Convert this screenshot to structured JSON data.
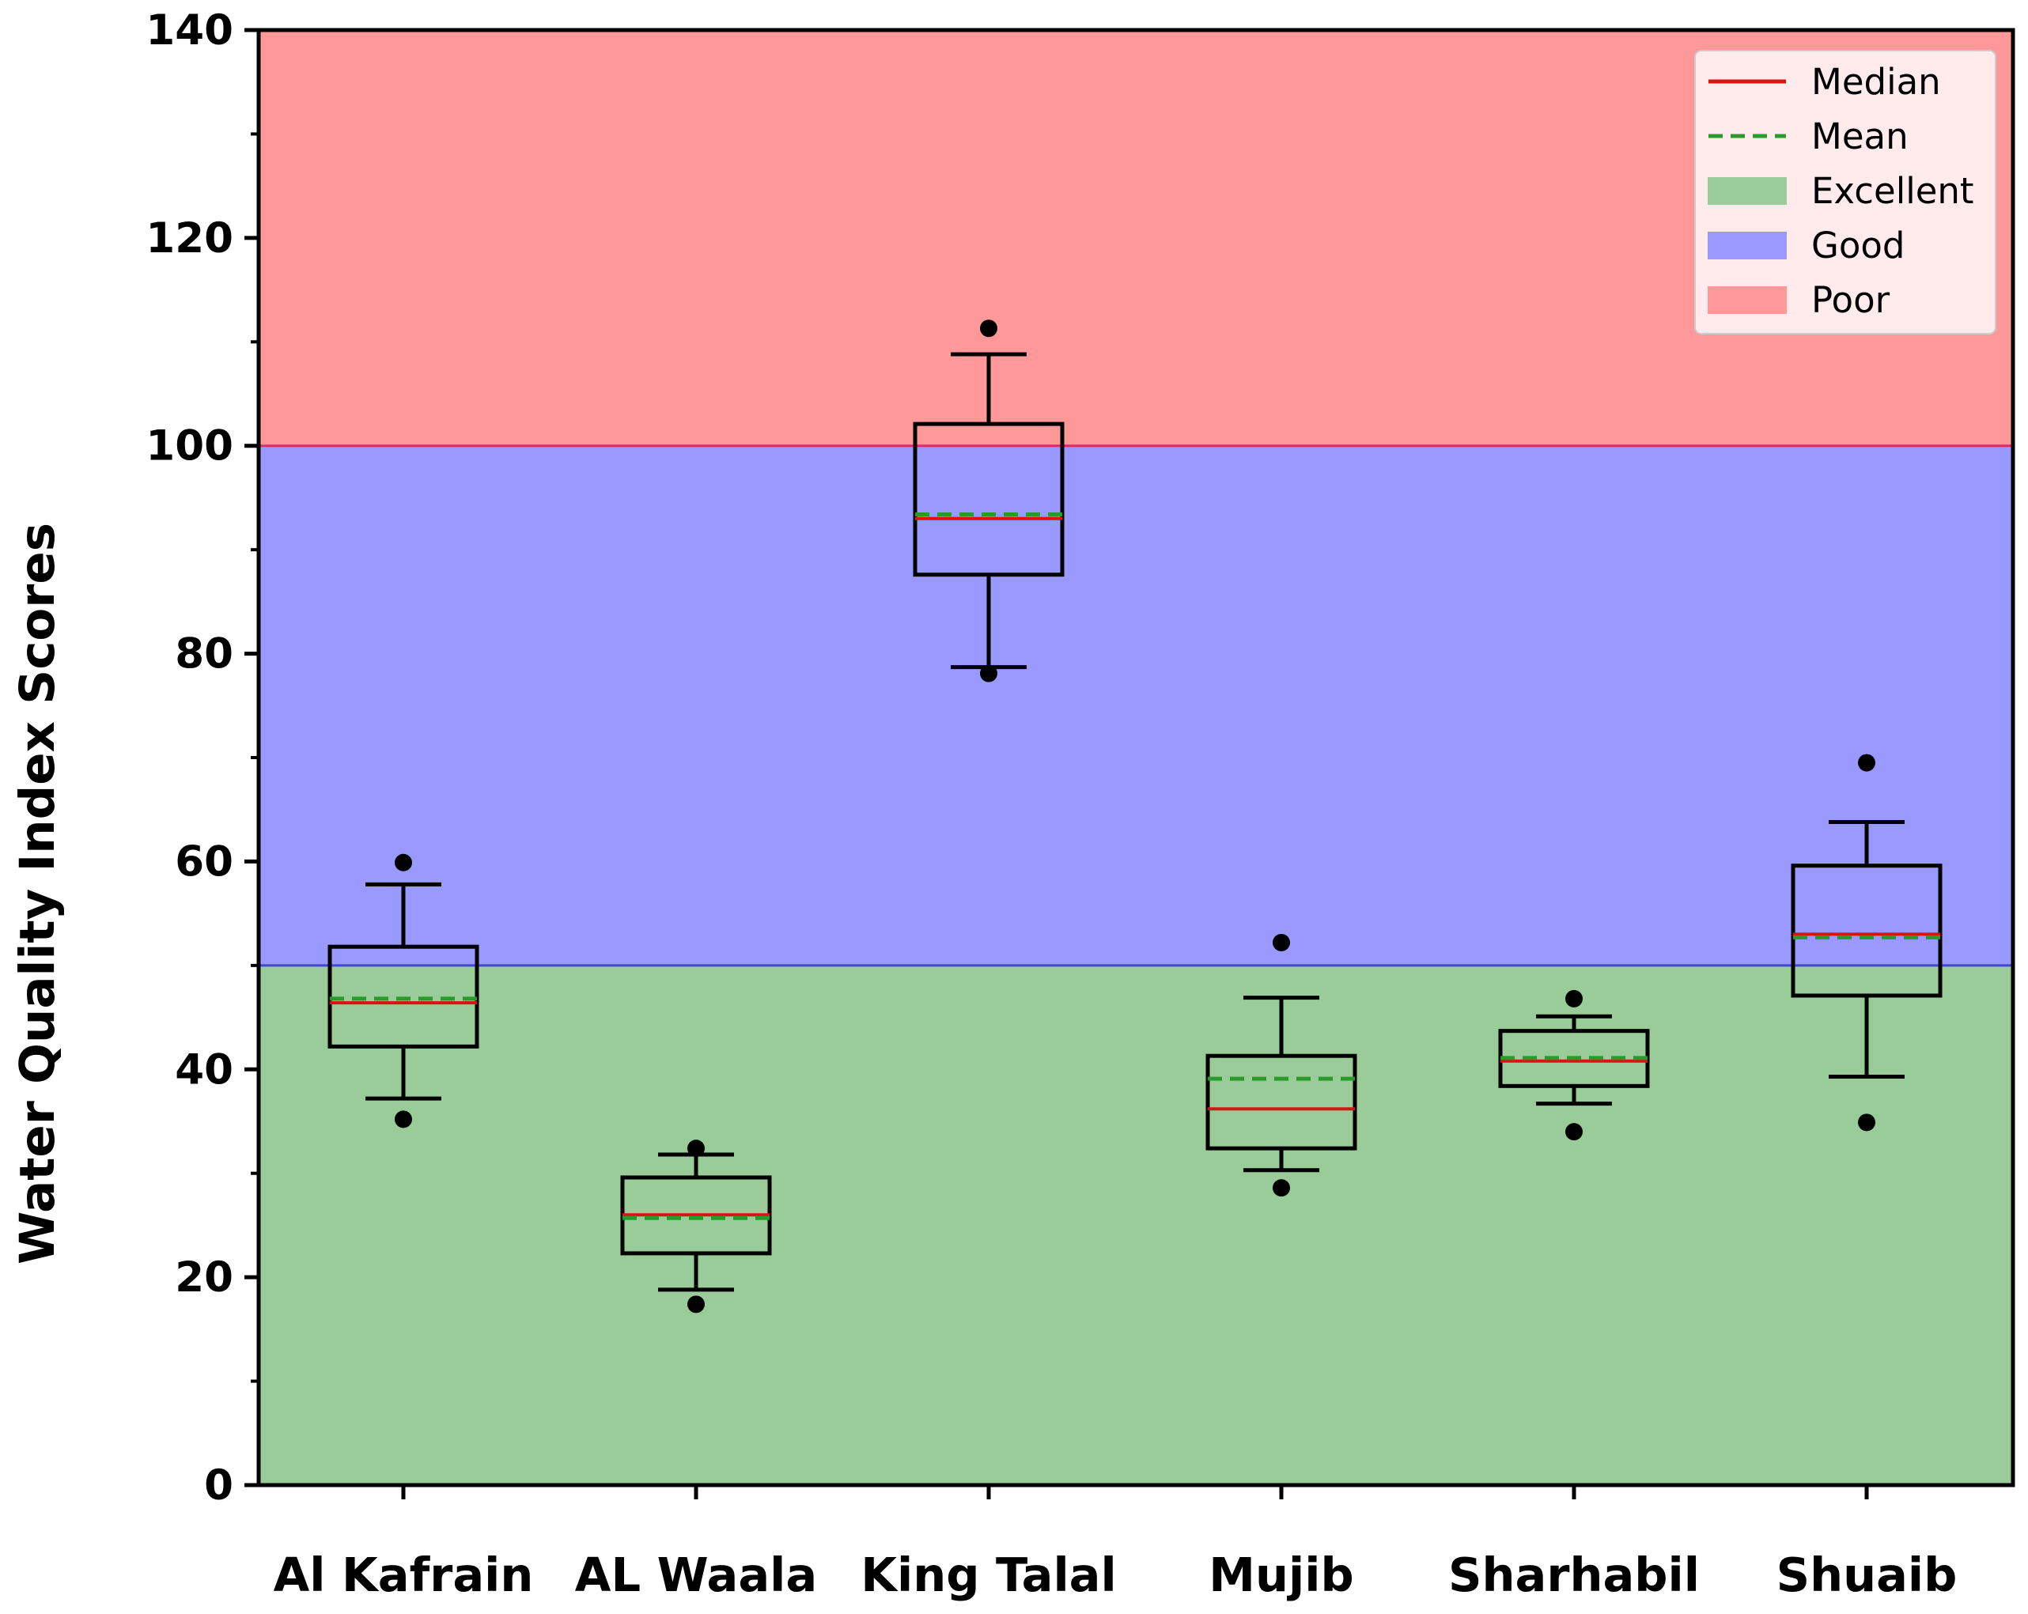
{
  "chart_data": {
    "type": "box",
    "title": "",
    "xlabel": "",
    "ylabel": "Water Quality Index Scores",
    "ylim": [
      0,
      140
    ],
    "yticks": [
      0,
      20,
      40,
      60,
      80,
      100,
      120,
      140
    ],
    "categories": [
      "Al Kafrain",
      "AL Waala",
      "King Talal",
      "Mujib",
      "Sharhabil",
      "Shuaib"
    ],
    "boxes": [
      {
        "whisker_low": 37.2,
        "q1": 42.2,
        "median": 46.4,
        "mean": 46.8,
        "q3": 51.8,
        "whisker_high": 57.8,
        "outliers": [
          35.2,
          59.9
        ]
      },
      {
        "whisker_low": 18.8,
        "q1": 22.3,
        "median": 26.0,
        "mean": 25.7,
        "q3": 29.6,
        "whisker_high": 31.8,
        "outliers": [
          17.4,
          32.4
        ]
      },
      {
        "whisker_low": 78.7,
        "q1": 87.6,
        "median": 93.0,
        "mean": 93.4,
        "q3": 102.1,
        "whisker_high": 108.8,
        "outliers": [
          78.1,
          111.3
        ]
      },
      {
        "whisker_low": 30.3,
        "q1": 32.4,
        "median": 36.2,
        "mean": 39.1,
        "q3": 41.3,
        "whisker_high": 46.9,
        "outliers": [
          28.6,
          52.2
        ]
      },
      {
        "whisker_low": 36.7,
        "q1": 38.4,
        "median": 40.8,
        "mean": 41.1,
        "q3": 43.7,
        "whisker_high": 45.1,
        "outliers": [
          34.0,
          46.8
        ]
      },
      {
        "whisker_low": 39.3,
        "q1": 47.1,
        "median": 53.0,
        "mean": 52.7,
        "q3": 59.6,
        "whisker_high": 63.8,
        "outliers": [
          34.9,
          69.5
        ]
      }
    ],
    "bands": [
      {
        "label": "Excellent",
        "from": 0,
        "to": 50,
        "color": "#99cc99"
      },
      {
        "label": "Good",
        "from": 50,
        "to": 100,
        "color": "#9999ff"
      },
      {
        "label": "Poor",
        "from": 100,
        "to": 140,
        "color": "#ff9999"
      }
    ],
    "band_lines": [
      {
        "value": 50,
        "color": "#4444dd"
      },
      {
        "value": 100,
        "color": "#cc3366"
      }
    ],
    "median_color": "#dd1111",
    "mean_color": "#2a9a2a",
    "legend": {
      "position": "top-right",
      "items": [
        {
          "label": "Median",
          "kind": "line",
          "color": "#dd1111"
        },
        {
          "label": "Mean",
          "kind": "dashed",
          "color": "#2a9a2a"
        },
        {
          "label": "Excellent",
          "kind": "patch",
          "color": "#99cc99"
        },
        {
          "label": "Good",
          "kind": "patch",
          "color": "#9999ff"
        },
        {
          "label": "Poor",
          "kind": "patch",
          "color": "#ff9999"
        }
      ]
    }
  }
}
